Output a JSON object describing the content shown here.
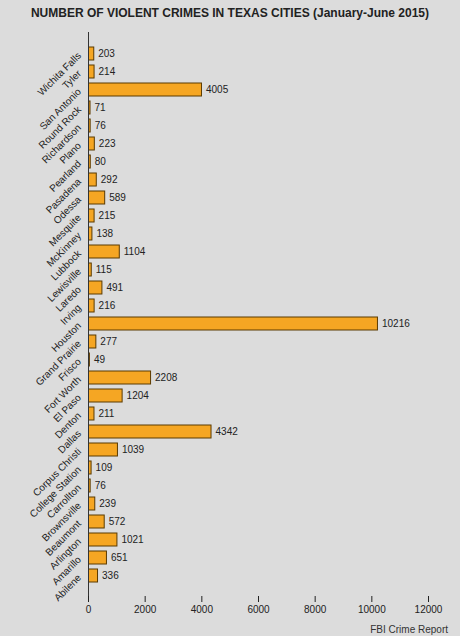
{
  "chart_data": {
    "type": "bar",
    "orientation": "horizontal",
    "title": "NUMBER OF VIOLENT CRIMES IN TEXAS CITIES (January-June 2015)",
    "caption": "FBI Crime Report",
    "categories": [
      "Wichita Falls",
      "Tyler",
      "San Antonio",
      "Round Rock",
      "Richardson",
      "Plano",
      "Pearland",
      "Pasadena",
      "Odessa",
      "Mesquite",
      "McKinney",
      "Lubbock",
      "Lewisville",
      "Laredo",
      "Irving",
      "Houston",
      "Grand Prairie",
      "Frisco",
      "Fort Worth",
      "El Paso",
      "Denton",
      "Dallas",
      "Corpus Christi",
      "College Station",
      "Carrollton",
      "Brownsville",
      "Beaumont",
      "Arlington",
      "Amarillo",
      "Abilene"
    ],
    "values": [
      203,
      214,
      4005,
      71,
      76,
      223,
      80,
      292,
      589,
      215,
      138,
      1104,
      115,
      491,
      216,
      10216,
      277,
      49,
      2208,
      1204,
      211,
      4342,
      1039,
      109,
      76,
      239,
      572,
      1021,
      651,
      336
    ],
    "color": "#f5a623",
    "xlim": [
      0,
      12000
    ],
    "xticks": [
      0,
      2000,
      4000,
      6000,
      8000,
      10000,
      12000
    ],
    "grid": false,
    "data_labels": true
  }
}
